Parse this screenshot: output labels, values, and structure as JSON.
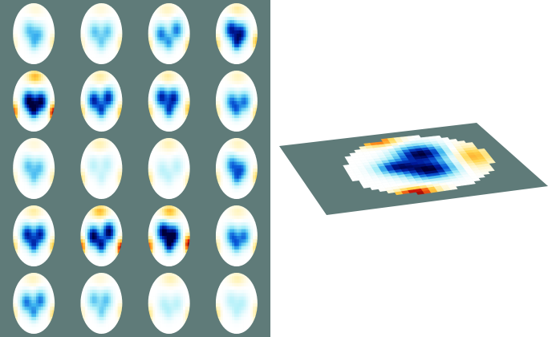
{
  "colors": {
    "background": "#ffffff",
    "panel_grey": "#5f7b79",
    "scale": [
      "#00003a",
      "#001a9a",
      "#0a5ad8",
      "#3fb6f0",
      "#a8eef8",
      "#ffffff",
      "#fff3b8",
      "#ffd54a",
      "#ff8a1a",
      "#d61a0a",
      "#6a0000"
    ]
  },
  "montage": {
    "rows": 5,
    "columns": 4,
    "maps": [
      [
        {
          "pattern": "faint-blue"
        },
        {
          "pattern": "faint-blue"
        },
        {
          "pattern": "light-blue"
        },
        {
          "pattern": "medium-blue"
        }
      ],
      [
        {
          "pattern": "strong-heart"
        },
        {
          "pattern": "medium-blue"
        },
        {
          "pattern": "medium-blue"
        },
        {
          "pattern": "light-blue"
        }
      ],
      [
        {
          "pattern": "faint-blue"
        },
        {
          "pattern": "faint-yellow"
        },
        {
          "pattern": "faint-yellow"
        },
        {
          "pattern": "light-blue"
        }
      ],
      [
        {
          "pattern": "medium-blue"
        },
        {
          "pattern": "strong-heart"
        },
        {
          "pattern": "strong-heart"
        },
        {
          "pattern": "light-blue"
        }
      ],
      [
        {
          "pattern": "light-blue"
        },
        {
          "pattern": "faint-blue"
        },
        {
          "pattern": "faint-yellow"
        },
        {
          "pattern": "faint-yellow"
        }
      ]
    ]
  },
  "perspective_view": {
    "pattern": "strong-heart",
    "description_visible": false
  }
}
